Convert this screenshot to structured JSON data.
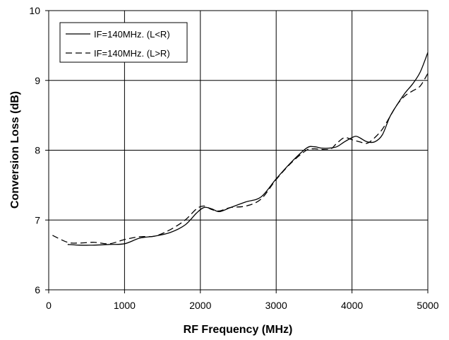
{
  "chart_data": {
    "type": "line",
    "title": "",
    "xlabel": "RF Frequency (MHz)",
    "ylabel": "Conversion Loss (dB)",
    "xlim": [
      0,
      5000
    ],
    "ylim": [
      6,
      10
    ],
    "x_ticks": [
      0,
      1000,
      2000,
      3000,
      4000,
      5000
    ],
    "y_ticks": [
      6,
      7,
      8,
      9,
      10
    ],
    "grid": true,
    "legend_position": "top-left",
    "series": [
      {
        "name": "IF=140MHz. (L<R)",
        "line_style": "solid",
        "color": "#000000",
        "x": [
          250,
          400,
          600,
          800,
          1000,
          1200,
          1400,
          1600,
          1800,
          1950,
          2050,
          2150,
          2250,
          2400,
          2600,
          2800,
          3000,
          3200,
          3400,
          3500,
          3600,
          3700,
          3800,
          3900,
          4000,
          4050,
          4100,
          4200,
          4300,
          4400,
          4500,
          4600,
          4700,
          4800,
          4900,
          5000
        ],
        "y": [
          6.65,
          6.64,
          6.64,
          6.65,
          6.66,
          6.74,
          6.77,
          6.82,
          6.93,
          7.1,
          7.18,
          7.16,
          7.12,
          7.18,
          7.26,
          7.33,
          7.59,
          7.83,
          8.03,
          8.05,
          8.03,
          8.03,
          8.05,
          8.12,
          8.18,
          8.2,
          8.18,
          8.12,
          8.12,
          8.22,
          8.48,
          8.66,
          8.82,
          8.95,
          9.12,
          9.4
        ]
      },
      {
        "name": "IF=140MHz. (L>R)",
        "line_style": "dashed",
        "color": "#000000",
        "x": [
          50,
          250,
          400,
          600,
          800,
          1000,
          1200,
          1400,
          1600,
          1800,
          1950,
          2050,
          2150,
          2250,
          2400,
          2600,
          2800,
          3000,
          3200,
          3400,
          3500,
          3700,
          3800,
          3900,
          4000,
          4100,
          4200,
          4300,
          4400,
          4500,
          4600,
          4700,
          4800,
          4900,
          5000
        ],
        "y": [
          6.78,
          6.68,
          6.67,
          6.68,
          6.66,
          6.72,
          6.76,
          6.77,
          6.86,
          7.0,
          7.16,
          7.2,
          7.15,
          7.13,
          7.18,
          7.2,
          7.3,
          7.58,
          7.82,
          8.0,
          8.02,
          8.01,
          8.1,
          8.18,
          8.15,
          8.12,
          8.1,
          8.18,
          8.3,
          8.48,
          8.66,
          8.78,
          8.85,
          8.92,
          9.1
        ]
      }
    ]
  }
}
